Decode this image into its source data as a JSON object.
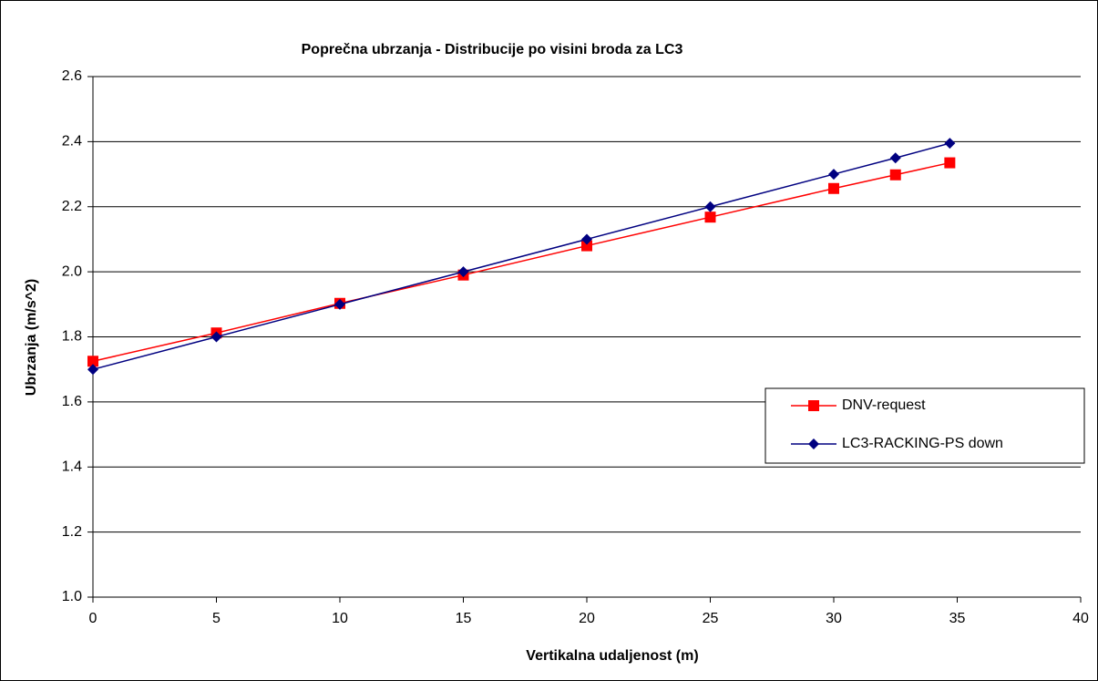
{
  "chart_data": {
    "type": "line",
    "title": "Poprečna ubrzanja - Distribucije po visini broda za LC3",
    "x_label": "Vertikalna udaljenost (m)",
    "y_label": "Ubrzanja (m/s^2)",
    "x": [
      0,
      5,
      10,
      15,
      20,
      25,
      30,
      32.5,
      34.7
    ],
    "series": [
      {
        "name": "DNV-request",
        "color": "#ff0000",
        "marker": "square",
        "values": [
          1.725,
          1.812,
          1.903,
          1.99,
          2.08,
          2.168,
          2.256,
          2.298,
          2.335
        ]
      },
      {
        "name": "LC3-RACKING-PS down",
        "color": "#000080",
        "marker": "diamond",
        "values": [
          1.7,
          1.8,
          1.9,
          2.0,
          2.1,
          2.2,
          2.3,
          2.35,
          2.395
        ]
      }
    ],
    "xlim": [
      0,
      40
    ],
    "xticks": [
      0,
      5,
      10,
      15,
      20,
      25,
      30,
      35,
      40
    ],
    "ylim": [
      1,
      2.6
    ],
    "yticks": [
      {
        "value": 1,
        "label": "1.0"
      },
      1.2,
      1.4,
      1.6,
      1.8,
      {
        "value": 2,
        "label": "2.0"
      },
      2.2,
      2.4,
      2.6
    ],
    "grid": true,
    "legend": "right"
  }
}
